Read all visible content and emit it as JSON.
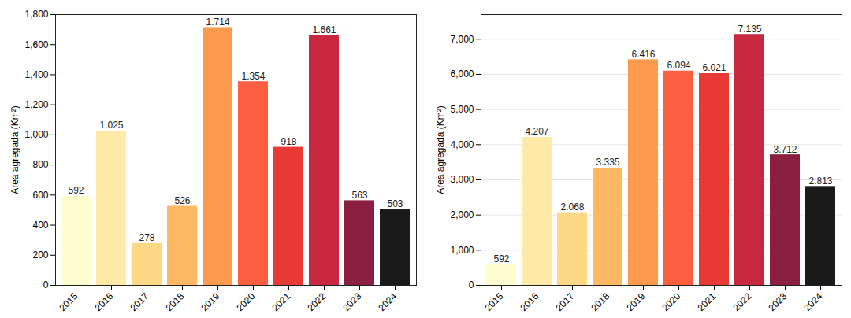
{
  "chart_data": [
    {
      "type": "bar",
      "ylabel": "Area agregada (Km²)",
      "categories": [
        "2015",
        "2016",
        "2017",
        "2018",
        "2019",
        "2020",
        "2021",
        "2022",
        "2023",
        "2024"
      ],
      "values": [
        592,
        1025,
        278,
        526,
        1714,
        1354,
        918,
        1661,
        563,
        503
      ],
      "value_labels": [
        "592",
        "1.025",
        "278",
        "526",
        "1.714",
        "1.354",
        "918",
        "1.661",
        "563",
        "503"
      ],
      "colors": [
        "#fefdd0",
        "#fde9a8",
        "#fdd985",
        "#fdb863",
        "#fd9a4e",
        "#fc5e42",
        "#e83a35",
        "#c8283f",
        "#8b1f3f",
        "#1a1a1a"
      ],
      "ylim": [
        0,
        1800
      ],
      "yticks": [
        0,
        200,
        400,
        600,
        800,
        {
          "value": 1000,
          "label": "1,000"
        },
        {
          "value": 1200,
          "label": "1,200"
        },
        {
          "value": 1400,
          "label": "1,400"
        },
        {
          "value": 1600,
          "label": "1,600"
        },
        {
          "value": 1800,
          "label": "1,800"
        }
      ],
      "grid": false,
      "data_labels": true
    },
    {
      "type": "bar",
      "ylabel": "Area agregada (Km²)",
      "categories": [
        "2015",
        "2016",
        "2017",
        "2018",
        "2019",
        "2020",
        "2021",
        "2022",
        "2023",
        "2024"
      ],
      "values": [
        592,
        4207,
        2068,
        3335,
        6416,
        6094,
        6021,
        7135,
        3712,
        2813
      ],
      "value_labels": [
        "592",
        "4.207",
        "2.068",
        "3.335",
        "6.416",
        "6.094",
        "6.021",
        "7.135",
        "3.712",
        "2.813"
      ],
      "colors": [
        "#fefdd0",
        "#fde9a8",
        "#fdd985",
        "#fdb863",
        "#fd9a4e",
        "#fc5e42",
        "#e83a35",
        "#c8283f",
        "#8b1f3f",
        "#1a1a1a"
      ],
      "ylim": [
        0,
        7700
      ],
      "yticks": [
        0,
        {
          "value": 1000,
          "label": "1,000"
        },
        {
          "value": 2000,
          "label": "2,000"
        },
        {
          "value": 3000,
          "label": "3,000"
        },
        {
          "value": 4000,
          "label": "4,000"
        },
        {
          "value": 5000,
          "label": "5,000"
        },
        {
          "value": 6000,
          "label": "6,000"
        },
        {
          "value": 7000,
          "label": "7,000"
        }
      ],
      "grid": true,
      "data_labels": true
    }
  ]
}
